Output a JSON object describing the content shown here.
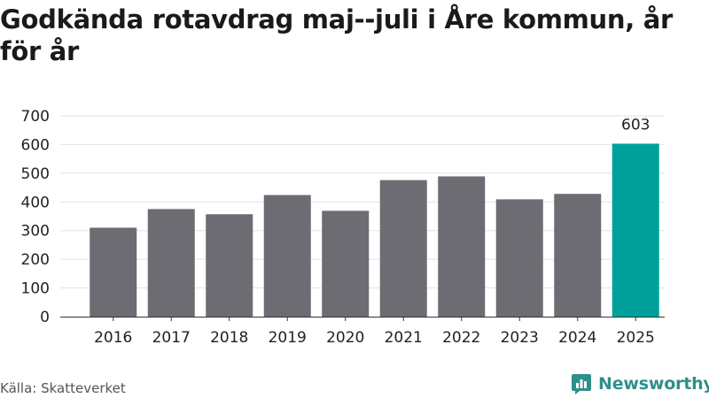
{
  "title": "Godkända rotavdrag maj--juli i Åre kommun, år för år",
  "source": "Källa: Skatteverket",
  "brand": {
    "name": "Newsworthy"
  },
  "colors": {
    "bar": "#6d6c72",
    "highlight": "#00a19a",
    "grid": "#e2e2e2",
    "brand": "#2f8f8a"
  },
  "chart_data": {
    "type": "bar",
    "categories": [
      "2016",
      "2017",
      "2018",
      "2019",
      "2020",
      "2021",
      "2022",
      "2023",
      "2024",
      "2025"
    ],
    "values": [
      310,
      375,
      357,
      424,
      369,
      476,
      489,
      409,
      428,
      603
    ],
    "highlight": "2025",
    "data_labels": {
      "2025": "603"
    },
    "yticks": [
      0,
      100,
      200,
      300,
      400,
      500,
      600,
      700
    ],
    "ylim": [
      0,
      700
    ],
    "grid": true,
    "legend": false
  }
}
